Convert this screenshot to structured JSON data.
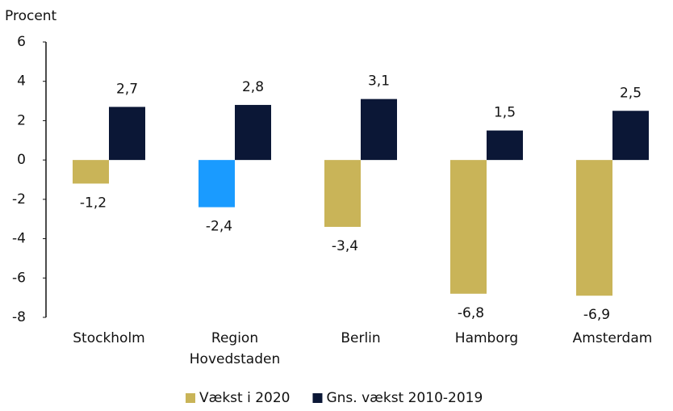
{
  "chart_data": {
    "type": "bar",
    "y_label": "Procent",
    "categories": [
      "Stockholm",
      "Region Hovedstaden",
      "Berlin",
      "Hamborg",
      "Amsterdam"
    ],
    "series": [
      {
        "name": "Vækst i 2020",
        "color": "#c9b458",
        "colors": [
          "#c9b458",
          "#1a9bff",
          "#c9b458",
          "#c9b458",
          "#c9b458"
        ],
        "values": [
          -1.2,
          -2.4,
          -3.4,
          -6.8,
          -6.9
        ],
        "value_labels": [
          "-1,2",
          "-2,4",
          "-3,4",
          "-6,8",
          "-6,9"
        ]
      },
      {
        "name": "Gns. vækst 2010-2019",
        "color": "#0b1736",
        "values": [
          2.7,
          2.8,
          3.1,
          1.5,
          2.5
        ],
        "value_labels": [
          "2,7",
          "2,8",
          "3,1",
          "1,5",
          "2,5"
        ]
      }
    ],
    "ylim": [
      -8,
      6
    ],
    "yticks": [
      -8,
      -6,
      -4,
      -2,
      0,
      2,
      4,
      6
    ],
    "grid": false,
    "legend": "bottom"
  }
}
